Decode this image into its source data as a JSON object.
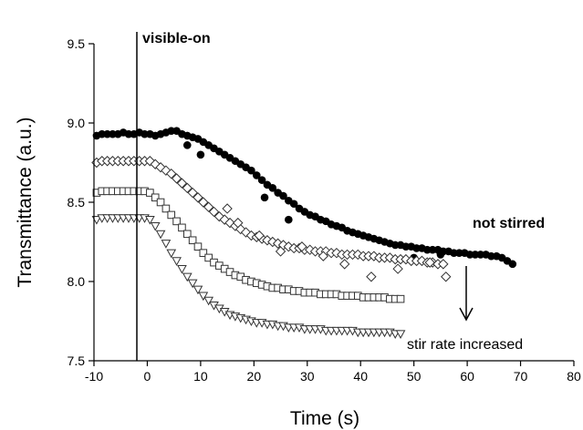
{
  "chart_data": {
    "type": "scatter",
    "title": "",
    "xlabel": "Time (s)",
    "ylabel": "Transmittance (a.u.)",
    "xlim": [
      -10,
      80
    ],
    "ylim": [
      7.5,
      9.5
    ],
    "xticks": [
      "-10",
      "0",
      "10",
      "20",
      "30",
      "40",
      "50",
      "60",
      "70",
      "80"
    ],
    "yticks": [
      "7.5",
      "8.0",
      "8.5",
      "9.0",
      "9.5"
    ],
    "grid": false,
    "annotations": {
      "visible_on": "visible-on",
      "not_stirred": "not stirred",
      "stir_rate": "stir rate increased"
    },
    "series": [
      {
        "marker": "filled-circle",
        "x": [
          -9.5,
          -8.5,
          -7.5,
          -6.5,
          -5.5,
          -4.5,
          -3.5,
          -2.5,
          -1.5,
          -0.5,
          0.5,
          1.5,
          2.5,
          3.5,
          4.5,
          5.5,
          6.5,
          7.5,
          8.5,
          9.5,
          10.5,
          11.5,
          12.5,
          13.5,
          14.5,
          15.5,
          16.5,
          17.5,
          18.5,
          19.5,
          20.5,
          21.5,
          22.5,
          23.5,
          24.5,
          25.5,
          26.5,
          27.5,
          28.5,
          29.5,
          30.5,
          31.5,
          32.5,
          33.5,
          34.5,
          35.5,
          36.5,
          37.5,
          38.5,
          39.5,
          40.5,
          41.5,
          42.5,
          43.5,
          44.5,
          45.5,
          46.5,
          47.5,
          48.5,
          49.5,
          50.5,
          51.5,
          52.5,
          53.5,
          54.5,
          55.5,
          56.5,
          57.5,
          58.5,
          59.5,
          60.5,
          61.5,
          62.5,
          63.5,
          64.5,
          65.5,
          66.5,
          67.5,
          68.5,
          7.5,
          10,
          22,
          26.5,
          50,
          55
        ],
        "y": [
          8.92,
          8.93,
          8.93,
          8.93,
          8.93,
          8.94,
          8.93,
          8.93,
          8.94,
          8.93,
          8.93,
          8.92,
          8.93,
          8.94,
          8.95,
          8.95,
          8.93,
          8.92,
          8.91,
          8.9,
          8.88,
          8.86,
          8.84,
          8.82,
          8.8,
          8.78,
          8.76,
          8.74,
          8.72,
          8.7,
          8.67,
          8.64,
          8.61,
          8.59,
          8.56,
          8.54,
          8.51,
          8.49,
          8.46,
          8.44,
          8.42,
          8.41,
          8.39,
          8.38,
          8.36,
          8.35,
          8.34,
          8.32,
          8.31,
          8.3,
          8.29,
          8.28,
          8.27,
          8.26,
          8.25,
          8.24,
          8.23,
          8.23,
          8.22,
          8.22,
          8.21,
          8.21,
          8.2,
          8.2,
          8.2,
          8.19,
          8.19,
          8.18,
          8.18,
          8.18,
          8.17,
          8.17,
          8.17,
          8.17,
          8.16,
          8.16,
          8.15,
          8.13,
          8.11,
          8.86,
          8.8,
          8.53,
          8.39,
          8.15,
          8.17
        ]
      },
      {
        "marker": "open-diamond",
        "x": [
          -9.5,
          -8.5,
          -7.5,
          -6.5,
          -5.5,
          -4.5,
          -3.5,
          -2.5,
          -1.5,
          -0.5,
          0.5,
          1.5,
          2.5,
          3.5,
          4.5,
          5.5,
          6.5,
          7.5,
          8.5,
          9.5,
          10.5,
          11.5,
          12.5,
          13.5,
          14.5,
          15.5,
          16.5,
          17.5,
          18.5,
          19.5,
          20.5,
          21.5,
          22.5,
          23.5,
          24.5,
          25.5,
          26.5,
          27.5,
          28.5,
          29.5,
          30.5,
          31.5,
          32.5,
          33.5,
          34.5,
          35.5,
          36.5,
          37.5,
          38.5,
          39.5,
          40.5,
          41.5,
          42.5,
          43.5,
          44.5,
          45.5,
          46.5,
          47.5,
          48.5,
          49.5,
          50.5,
          51.5,
          52.5,
          53.5,
          54.5,
          55.5,
          15,
          17,
          21,
          25,
          29,
          33,
          37,
          42,
          47,
          53,
          56
        ],
        "y": [
          8.75,
          8.76,
          8.76,
          8.76,
          8.76,
          8.76,
          8.76,
          8.76,
          8.76,
          8.76,
          8.76,
          8.74,
          8.72,
          8.7,
          8.68,
          8.65,
          8.62,
          8.59,
          8.56,
          8.53,
          8.5,
          8.47,
          8.44,
          8.41,
          8.39,
          8.37,
          8.35,
          8.33,
          8.31,
          8.29,
          8.28,
          8.27,
          8.26,
          8.25,
          8.24,
          8.23,
          8.22,
          8.21,
          8.21,
          8.2,
          8.2,
          8.19,
          8.19,
          8.19,
          8.18,
          8.18,
          8.17,
          8.17,
          8.17,
          8.17,
          8.16,
          8.16,
          8.16,
          8.15,
          8.15,
          8.15,
          8.14,
          8.14,
          8.14,
          8.13,
          8.13,
          8.13,
          8.12,
          8.12,
          8.11,
          8.11,
          8.46,
          8.37,
          8.29,
          8.19,
          8.22,
          8.16,
          8.11,
          8.03,
          8.08,
          8.12,
          8.03
        ]
      },
      {
        "marker": "open-square",
        "x": [
          -9.5,
          -8.5,
          -7.5,
          -6.5,
          -5.5,
          -4.5,
          -3.5,
          -2.5,
          -1.5,
          -0.5,
          0.5,
          1.5,
          2.5,
          3.5,
          4.5,
          5.5,
          6.5,
          7.5,
          8.5,
          9.5,
          10.5,
          11.5,
          12.5,
          13.5,
          14.5,
          15.5,
          16.5,
          17.5,
          18.5,
          19.5,
          20.5,
          21.5,
          22.5,
          23.5,
          24.5,
          25.5,
          26.5,
          27.5,
          28.5,
          29.5,
          30.5,
          31.5,
          32.5,
          33.5,
          34.5,
          35.5,
          36.5,
          37.5,
          38.5,
          39.5,
          40.5,
          41.5,
          42.5,
          43.5,
          44.5,
          45.5,
          46.5,
          47.5
        ],
        "y": [
          8.56,
          8.57,
          8.57,
          8.57,
          8.57,
          8.57,
          8.57,
          8.57,
          8.57,
          8.57,
          8.56,
          8.53,
          8.5,
          8.46,
          8.42,
          8.38,
          8.34,
          8.3,
          8.26,
          8.22,
          8.18,
          8.15,
          8.12,
          8.1,
          8.08,
          8.06,
          8.04,
          8.03,
          8.01,
          8.0,
          7.99,
          7.98,
          7.97,
          7.96,
          7.96,
          7.95,
          7.95,
          7.94,
          7.94,
          7.93,
          7.93,
          7.93,
          7.92,
          7.92,
          7.92,
          7.92,
          7.91,
          7.91,
          7.91,
          7.91,
          7.9,
          7.9,
          7.9,
          7.9,
          7.9,
          7.89,
          7.89,
          7.89
        ]
      },
      {
        "marker": "open-triangle-down",
        "x": [
          -9.5,
          -8.5,
          -7.5,
          -6.5,
          -5.5,
          -4.5,
          -3.5,
          -2.5,
          -1.5,
          -0.5,
          0.5,
          1.5,
          2.5,
          3.5,
          4.5,
          5.5,
          6.5,
          7.5,
          8.5,
          9.5,
          10.5,
          11.5,
          12.5,
          13.5,
          14.5,
          15.5,
          16.5,
          17.5,
          18.5,
          19.5,
          20.5,
          21.5,
          22.5,
          23.5,
          24.5,
          25.5,
          26.5,
          27.5,
          28.5,
          29.5,
          30.5,
          31.5,
          32.5,
          33.5,
          34.5,
          35.5,
          36.5,
          37.5,
          38.5,
          39.5,
          40.5,
          41.5,
          42.5,
          43.5,
          44.5,
          45.5,
          46.5,
          47.5
        ],
        "y": [
          8.39,
          8.4,
          8.4,
          8.4,
          8.4,
          8.4,
          8.4,
          8.4,
          8.4,
          8.4,
          8.39,
          8.35,
          8.3,
          8.24,
          8.18,
          8.13,
          8.08,
          8.03,
          7.99,
          7.95,
          7.91,
          7.88,
          7.85,
          7.83,
          7.81,
          7.79,
          7.78,
          7.77,
          7.76,
          7.75,
          7.74,
          7.74,
          7.73,
          7.73,
          7.72,
          7.72,
          7.71,
          7.71,
          7.71,
          7.7,
          7.7,
          7.7,
          7.7,
          7.69,
          7.69,
          7.69,
          7.69,
          7.69,
          7.69,
          7.68,
          7.68,
          7.68,
          7.68,
          7.68,
          7.68,
          7.68,
          7.67,
          7.67
        ]
      }
    ]
  }
}
